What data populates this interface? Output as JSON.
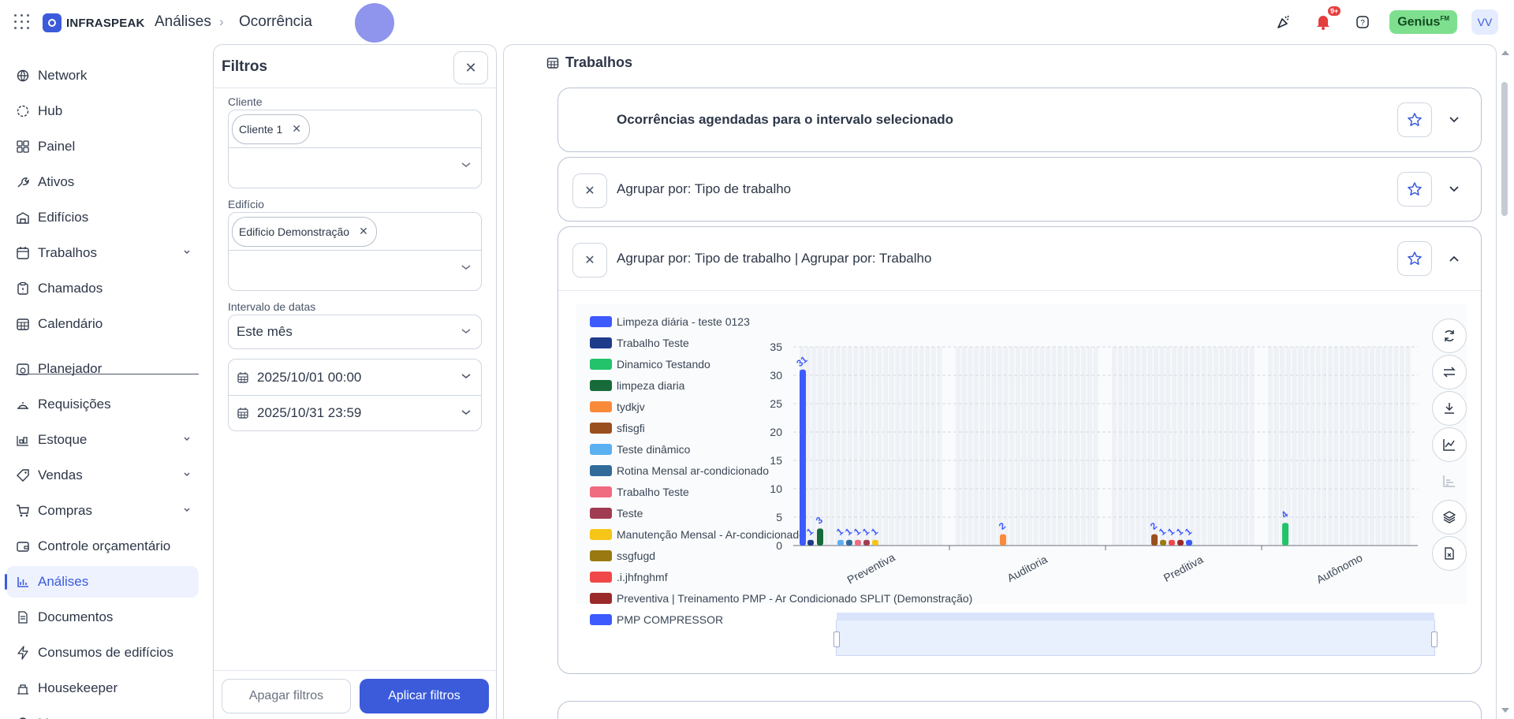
{
  "topbar": {
    "brand": "INFRASPEAK",
    "breadcrumb": [
      "Análises",
      "Ocorrência"
    ],
    "notifications_badge": "9+",
    "genius_label": "Genius",
    "genius_suffix": "FM",
    "user_initials": "VV"
  },
  "sidebar": {
    "items": [
      {
        "label": "Network",
        "icon": "network-icon",
        "has_children": false
      },
      {
        "label": "Hub",
        "icon": "hub-icon",
        "has_children": false
      },
      {
        "label": "Painel",
        "icon": "dashboard-icon",
        "has_children": false
      },
      {
        "label": "Ativos",
        "icon": "assets-icon",
        "has_children": false
      },
      {
        "label": "Edifícios",
        "icon": "building-icon",
        "has_children": false
      },
      {
        "label": "Trabalhos",
        "icon": "calendar-icon",
        "has_children": true
      },
      {
        "label": "Chamados",
        "icon": "clipboard-icon",
        "has_children": false
      },
      {
        "label": "Calendário",
        "icon": "calendar-grid-icon",
        "has_children": false
      },
      {
        "label": "Planejador",
        "icon": "planner-icon",
        "has_children": false
      },
      {
        "label": "Requisições",
        "icon": "requests-icon",
        "has_children": false
      },
      {
        "label": "Estoque",
        "icon": "stock-icon",
        "has_children": true
      },
      {
        "label": "Vendas",
        "icon": "tag-icon",
        "has_children": true
      },
      {
        "label": "Compras",
        "icon": "cart-icon",
        "has_children": true
      },
      {
        "label": "Controle orçamentário",
        "icon": "wallet-icon",
        "has_children": false
      },
      {
        "label": "Análises",
        "icon": "chart-icon",
        "has_children": false,
        "active": true
      },
      {
        "label": "Documentos",
        "icon": "document-icon",
        "has_children": false
      },
      {
        "label": "Consumos de edifícios",
        "icon": "bolt-icon",
        "has_children": false
      },
      {
        "label": "Housekeeper",
        "icon": "housekeeper-icon",
        "has_children": false
      },
      {
        "label": "Maps",
        "icon": "pin-icon",
        "has_children": false
      }
    ]
  },
  "filters": {
    "title": "Filtros",
    "cliente_label": "Cliente",
    "cliente_chip": "Cliente 1",
    "edificio_label": "Edifício",
    "edificio_chip": "Edificio Demonstração",
    "intervalo_label": "Intervalo de datas",
    "intervalo_value": "Este mês",
    "date_start": "2025/10/01 00:00",
    "date_end": "2025/10/31 23:59",
    "clear_label": "Apagar filtros",
    "apply_label": "Aplicar filtros"
  },
  "main": {
    "title": "Trabalhos",
    "cards": [
      {
        "label": "Ocorrências agendadas para o intervalo selecionado",
        "closable": false,
        "expanded": false
      },
      {
        "label": "Agrupar por: Tipo de trabalho",
        "closable": true,
        "expanded": false
      },
      {
        "label": "Agrupar por: Tipo de trabalho | Agrupar por: Trabalho",
        "closable": true,
        "expanded": true
      }
    ]
  },
  "chart_data": {
    "type": "bar",
    "title": "",
    "xlabel": "",
    "ylabel": "",
    "ylim": [
      0,
      35
    ],
    "yticks": [
      0,
      5,
      10,
      15,
      20,
      25,
      30,
      35
    ],
    "categories": [
      "Preventiva",
      "Auditoria",
      "Preditiva",
      "Autônomo"
    ],
    "legend": [
      {
        "name": "Limpeza diária - teste 0123",
        "color": "#3d5afe"
      },
      {
        "name": "Trabalho Teste",
        "color": "#1e3a8a"
      },
      {
        "name": "Dinamico Testando",
        "color": "#22c36a"
      },
      {
        "name": "limpeza diaria",
        "color": "#176b3a"
      },
      {
        "name": "tydkjv",
        "color": "#f98a3a"
      },
      {
        "name": "sfisgfi",
        "color": "#9a4f1e"
      },
      {
        "name": "Teste dinâmico",
        "color": "#5ab0f0"
      },
      {
        "name": "Rotina Mensal ar-condicionado",
        "color": "#2f6a9a"
      },
      {
        "name": "Trabalho Teste",
        "color": "#f06a80"
      },
      {
        "name": "Teste",
        "color": "#a03c52"
      },
      {
        "name": "Manutenção Mensal - Ar-condicionado",
        "color": "#f5c518"
      },
      {
        "name": "ssgfugd",
        "color": "#9a7a10"
      },
      {
        "name": ".i.jhfnghmf",
        "color": "#f04848"
      },
      {
        "name": "Preventiva | Treinamento PMP - Ar Condicionado SPLIT (Demonstração)",
        "color": "#9a2a2a"
      },
      {
        "name": "PMP COMPRESSOR",
        "color": "#3d5afe"
      }
    ],
    "bars": [
      {
        "category": "Preventiva",
        "series": "Limpeza diária - teste 0123",
        "value": 31,
        "label": "31",
        "color": "#3d5afe"
      },
      {
        "category": "Preventiva",
        "series": "Trabalho Teste",
        "value": 1,
        "label": "1",
        "color": "#1e3a8a"
      },
      {
        "category": "Preventiva",
        "series": "limpeza diaria",
        "value": 3,
        "label": "3",
        "color": "#176b3a"
      },
      {
        "category": "Preventiva",
        "series": "Teste dinâmico",
        "value": 1,
        "label": "1",
        "color": "#5ab0f0"
      },
      {
        "category": "Preventiva",
        "series": "Rotina Mensal ar-condicionado",
        "value": 1,
        "label": "1",
        "color": "#2f6a9a"
      },
      {
        "category": "Preventiva",
        "series": "Trabalho Teste",
        "value": 1,
        "label": "1",
        "color": "#f06a80"
      },
      {
        "category": "Preventiva",
        "series": "Teste",
        "value": 1,
        "label": "1",
        "color": "#a03c52"
      },
      {
        "category": "Preventiva",
        "series": "Manutenção Mensal - Ar-condicionado",
        "value": 1,
        "label": "1",
        "color": "#f5c518"
      },
      {
        "category": "Auditoria",
        "series": "tydkjv",
        "value": 2,
        "label": "2",
        "color": "#f98a3a"
      },
      {
        "category": "Preditiva",
        "series": "sfisgfi",
        "value": 2,
        "label": "2",
        "color": "#9a4f1e"
      },
      {
        "category": "Preditiva",
        "series": "ssgfugd",
        "value": 1,
        "label": "1",
        "color": "#9a7a10"
      },
      {
        "category": "Preditiva",
        "series": ".i.jhfnghmf",
        "value": 1,
        "label": "1",
        "color": "#f04848"
      },
      {
        "category": "Preditiva",
        "series": "Preventiva | Treinamento PMP - Ar Condicionado SPLIT (Demonstração)",
        "value": 1,
        "label": "1",
        "color": "#9a2a2a"
      },
      {
        "category": "Preditiva",
        "series": "PMP COMPRESSOR",
        "value": 1,
        "label": "1",
        "color": "#3d5afe"
      },
      {
        "category": "Autônomo",
        "series": "Dinamico Testando",
        "value": 4,
        "label": "4",
        "color": "#22c36a"
      }
    ],
    "grid": true,
    "legend_position": "left",
    "datazoom": true
  }
}
